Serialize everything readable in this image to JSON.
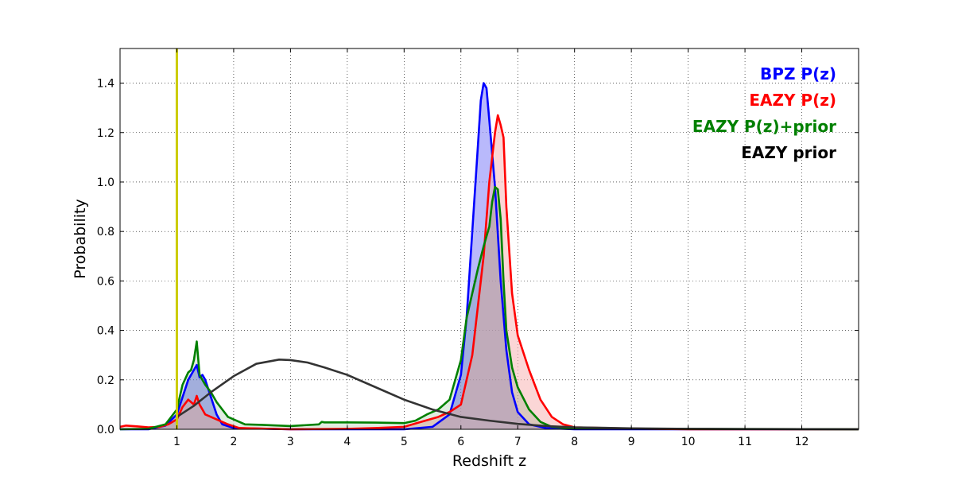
{
  "chart_data": {
    "type": "line",
    "xlabel": "Redshift z",
    "ylabel": "Probability",
    "xlim": [
      0,
      13
    ],
    "ylim": [
      0,
      1.54
    ],
    "xticks": [
      1,
      2,
      3,
      4,
      5,
      6,
      7,
      8,
      9,
      10,
      11,
      12
    ],
    "yticks": [
      0.0,
      0.2,
      0.4,
      0.6,
      0.8,
      1.0,
      1.2,
      1.4
    ],
    "ytick_labels": [
      "0.0",
      "0.2",
      "0.4",
      "0.6",
      "0.8",
      "1.0",
      "1.2",
      "1.4"
    ],
    "grid": true,
    "legend_position": "top-right",
    "vertical_markers": [
      {
        "x": 1.0,
        "color": "#cccc00"
      }
    ],
    "series": [
      {
        "name": "BPZ P(z)",
        "color": "#0000ff",
        "fill": "#7f7ff8",
        "filled": true,
        "points": [
          [
            0,
            0.0
          ],
          [
            0.5,
            0.0
          ],
          [
            0.8,
            0.015
          ],
          [
            1.0,
            0.06
          ],
          [
            1.1,
            0.13
          ],
          [
            1.2,
            0.2
          ],
          [
            1.3,
            0.24
          ],
          [
            1.35,
            0.26
          ],
          [
            1.4,
            0.21
          ],
          [
            1.45,
            0.22
          ],
          [
            1.5,
            0.2
          ],
          [
            1.6,
            0.13
          ],
          [
            1.7,
            0.06
          ],
          [
            1.8,
            0.02
          ],
          [
            2.0,
            0.005
          ],
          [
            3.0,
            0.0
          ],
          [
            5.0,
            0.0
          ],
          [
            5.5,
            0.01
          ],
          [
            5.8,
            0.06
          ],
          [
            6.0,
            0.22
          ],
          [
            6.1,
            0.45
          ],
          [
            6.2,
            0.8
          ],
          [
            6.3,
            1.15
          ],
          [
            6.35,
            1.33
          ],
          [
            6.4,
            1.4
          ],
          [
            6.45,
            1.38
          ],
          [
            6.5,
            1.25
          ],
          [
            6.6,
            0.98
          ],
          [
            6.7,
            0.6
          ],
          [
            6.8,
            0.32
          ],
          [
            6.9,
            0.15
          ],
          [
            7.0,
            0.07
          ],
          [
            7.2,
            0.02
          ],
          [
            7.5,
            0.005
          ],
          [
            8.0,
            0.0
          ],
          [
            13,
            0.0
          ]
        ]
      },
      {
        "name": "EAZY P(z)",
        "color": "#ff0000",
        "fill": "#f7b5b5",
        "filled": true,
        "points": [
          [
            0,
            0.01
          ],
          [
            0.1,
            0.015
          ],
          [
            0.3,
            0.012
          ],
          [
            0.5,
            0.008
          ],
          [
            0.7,
            0.01
          ],
          [
            0.85,
            0.02
          ],
          [
            1.0,
            0.04
          ],
          [
            1.1,
            0.09
          ],
          [
            1.2,
            0.12
          ],
          [
            1.25,
            0.11
          ],
          [
            1.3,
            0.1
          ],
          [
            1.35,
            0.135
          ],
          [
            1.4,
            0.1
          ],
          [
            1.5,
            0.06
          ],
          [
            1.7,
            0.04
          ],
          [
            1.9,
            0.02
          ],
          [
            2.1,
            0.005
          ],
          [
            3.0,
            0.0
          ],
          [
            4.0,
            0.002
          ],
          [
            4.5,
            0.005
          ],
          [
            5.0,
            0.01
          ],
          [
            5.3,
            0.03
          ],
          [
            5.6,
            0.05
          ],
          [
            5.8,
            0.07
          ],
          [
            6.0,
            0.1
          ],
          [
            6.2,
            0.3
          ],
          [
            6.4,
            0.7
          ],
          [
            6.5,
            1.0
          ],
          [
            6.6,
            1.2
          ],
          [
            6.65,
            1.27
          ],
          [
            6.7,
            1.23
          ],
          [
            6.75,
            1.18
          ],
          [
            6.8,
            0.9
          ],
          [
            6.9,
            0.55
          ],
          [
            7.0,
            0.38
          ],
          [
            7.2,
            0.24
          ],
          [
            7.4,
            0.12
          ],
          [
            7.6,
            0.05
          ],
          [
            7.8,
            0.02
          ],
          [
            8.0,
            0.008
          ],
          [
            9.0,
            0.003
          ],
          [
            10.0,
            0.0
          ],
          [
            13,
            0.0
          ]
        ]
      },
      {
        "name": "EAZY P(z)+prior",
        "color": "#008000",
        "fill": "#006400",
        "filled": false,
        "points": [
          [
            0,
            0.0
          ],
          [
            0.5,
            0.002
          ],
          [
            0.8,
            0.02
          ],
          [
            1.0,
            0.08
          ],
          [
            1.1,
            0.18
          ],
          [
            1.2,
            0.23
          ],
          [
            1.25,
            0.24
          ],
          [
            1.3,
            0.28
          ],
          [
            1.35,
            0.355
          ],
          [
            1.4,
            0.22
          ],
          [
            1.5,
            0.18
          ],
          [
            1.6,
            0.15
          ],
          [
            1.7,
            0.11
          ],
          [
            1.8,
            0.08
          ],
          [
            1.9,
            0.05
          ],
          [
            2.0,
            0.04
          ],
          [
            2.1,
            0.03
          ],
          [
            2.2,
            0.02
          ],
          [
            2.5,
            0.018
          ],
          [
            3.0,
            0.013
          ],
          [
            3.5,
            0.02
          ],
          [
            3.55,
            0.03
          ],
          [
            3.6,
            0.028
          ],
          [
            4.0,
            0.028
          ],
          [
            4.5,
            0.027
          ],
          [
            5.0,
            0.025
          ],
          [
            5.2,
            0.035
          ],
          [
            5.4,
            0.06
          ],
          [
            5.6,
            0.08
          ],
          [
            5.8,
            0.12
          ],
          [
            6.0,
            0.28
          ],
          [
            6.1,
            0.45
          ],
          [
            6.2,
            0.55
          ],
          [
            6.3,
            0.65
          ],
          [
            6.4,
            0.74
          ],
          [
            6.5,
            0.82
          ],
          [
            6.55,
            0.92
          ],
          [
            6.6,
            0.98
          ],
          [
            6.65,
            0.97
          ],
          [
            6.7,
            0.85
          ],
          [
            6.75,
            0.6
          ],
          [
            6.8,
            0.4
          ],
          [
            6.9,
            0.25
          ],
          [
            7.0,
            0.17
          ],
          [
            7.2,
            0.08
          ],
          [
            7.4,
            0.03
          ],
          [
            7.6,
            0.01
          ],
          [
            8.0,
            0.003
          ],
          [
            13,
            0.0
          ]
        ]
      },
      {
        "name": "EAZY prior",
        "color": "#333333",
        "fill": "",
        "filled": false,
        "points": [
          [
            1.0,
            0.05
          ],
          [
            1.3,
            0.095
          ],
          [
            1.6,
            0.15
          ],
          [
            2.0,
            0.215
          ],
          [
            2.4,
            0.265
          ],
          [
            2.8,
            0.282
          ],
          [
            3.0,
            0.28
          ],
          [
            3.3,
            0.27
          ],
          [
            3.6,
            0.25
          ],
          [
            4.0,
            0.22
          ],
          [
            4.5,
            0.17
          ],
          [
            5.0,
            0.12
          ],
          [
            5.5,
            0.08
          ],
          [
            6.0,
            0.05
          ],
          [
            6.5,
            0.035
          ],
          [
            7.0,
            0.022
          ],
          [
            7.5,
            0.013
          ],
          [
            8.0,
            0.008
          ],
          [
            9.0,
            0.004
          ],
          [
            10.0,
            0.002
          ],
          [
            11.0,
            0.001
          ],
          [
            12.0,
            0.0005
          ],
          [
            13.0,
            0.0
          ]
        ]
      }
    ]
  }
}
